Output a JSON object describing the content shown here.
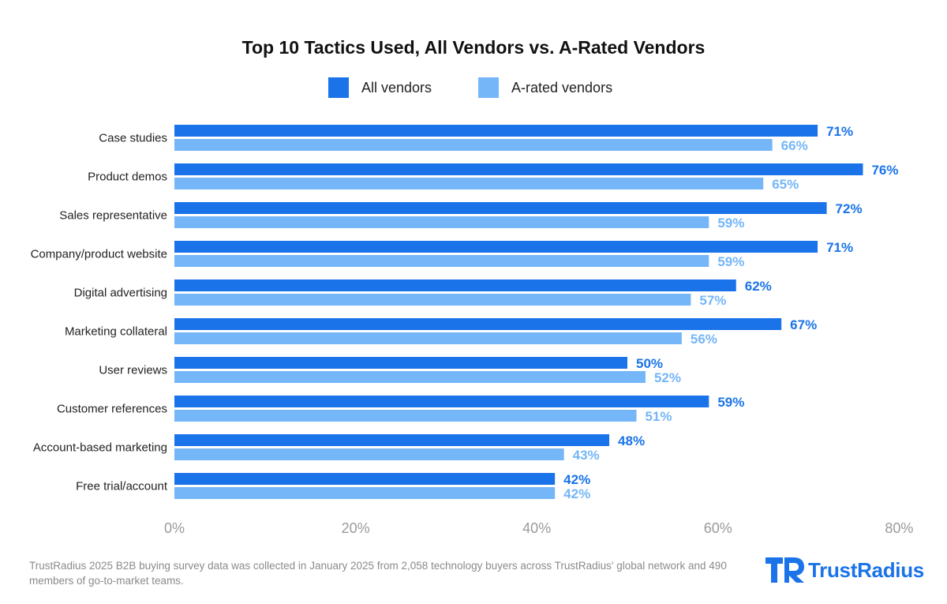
{
  "colors": {
    "all_vendors": "#1a73e8",
    "a_rated_vendors": "#74b6f7"
  },
  "chart_data": {
    "type": "bar",
    "orientation": "horizontal",
    "title": "Top 10 Tactics Used, All Vendors vs.  A-Rated Vendors",
    "categories": [
      "Case studies",
      "Product demos",
      "Sales representative",
      "Company/product website",
      "Digital advertising",
      "Marketing collateral",
      "User reviews",
      "Customer references",
      "Account-based marketing",
      "Free trial/account"
    ],
    "series": [
      {
        "name": "All vendors",
        "values": [
          71,
          76,
          72,
          71,
          62,
          67,
          50,
          59,
          48,
          42
        ]
      },
      {
        "name": "A-rated vendors",
        "values": [
          66,
          65,
          59,
          59,
          57,
          56,
          52,
          51,
          43,
          42
        ]
      }
    ],
    "value_suffix": "%",
    "xlim": [
      0,
      80
    ],
    "x_ticks": [
      "0%",
      "20%",
      "40%",
      "60%",
      "80%"
    ],
    "legend_position": "top-center",
    "grid": false
  },
  "footnote": "TrustRadius 2025 B2B buying survey data was collected in January 2025 from 2,058 technology buyers across TrustRadius' global network and 490 members of go-to-market teams.",
  "logo": {
    "text": "TrustRadius",
    "icon": "trustradius-logo-icon"
  }
}
